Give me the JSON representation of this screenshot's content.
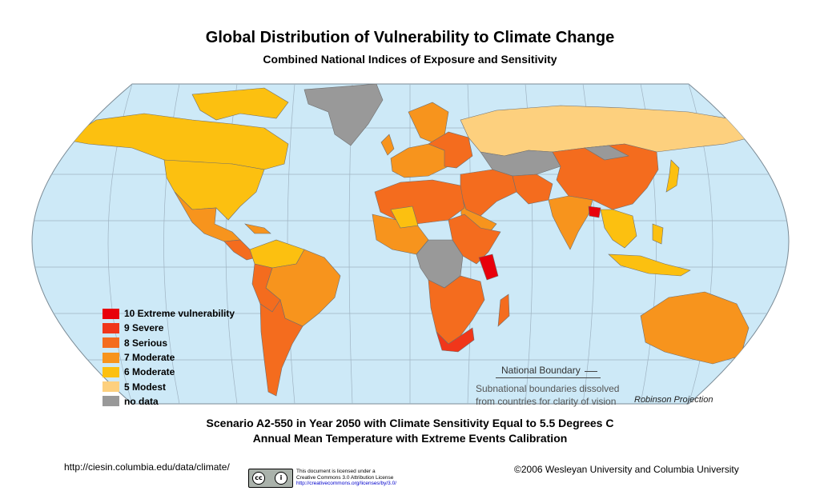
{
  "title": "Global Distribution of Vulnerability to Climate Change",
  "subtitle": "Combined National Indices of Exposure and Sensitivity",
  "legend": [
    {
      "label": "10 Extreme vulnerability",
      "color": "#e8000b"
    },
    {
      "label": "9  Severe",
      "color": "#f0361a"
    },
    {
      "label": "8  Serious",
      "color": "#f46c1e"
    },
    {
      "label": "7  Moderate",
      "color": "#f7941d"
    },
    {
      "label": "6  Moderate",
      "color": "#fcc010"
    },
    {
      "label": "5  Modest",
      "color": "#fdd07e"
    },
    {
      "label": "no data",
      "color": "#999999"
    }
  ],
  "ocean_color": "#cde9f7",
  "boundary_note": {
    "label": "National Boundary",
    "note_line1": "Subnational boundaries dissolved",
    "note_line2": "from countries for clarity of vision"
  },
  "projection": "Robinson Projection",
  "scenario_line1": "Scenario A2-550 in Year 2050 with Climate Sensitivity Equal to 5.5 Degrees C",
  "scenario_line2": "Annual Mean Temperature with Extreme Events Calibration",
  "url": "http://ciesin.columbia.edu/data/climate/",
  "copyright": "©2006 Wesleyan University and Columbia University",
  "license": {
    "badge_left": "cc",
    "badge_right": "i",
    "line1": "This document is licensed under a",
    "line2": "Creative Commons 3.0 Attribution License",
    "link": "http://creativecommons.org/licenses/by/3.0/"
  }
}
